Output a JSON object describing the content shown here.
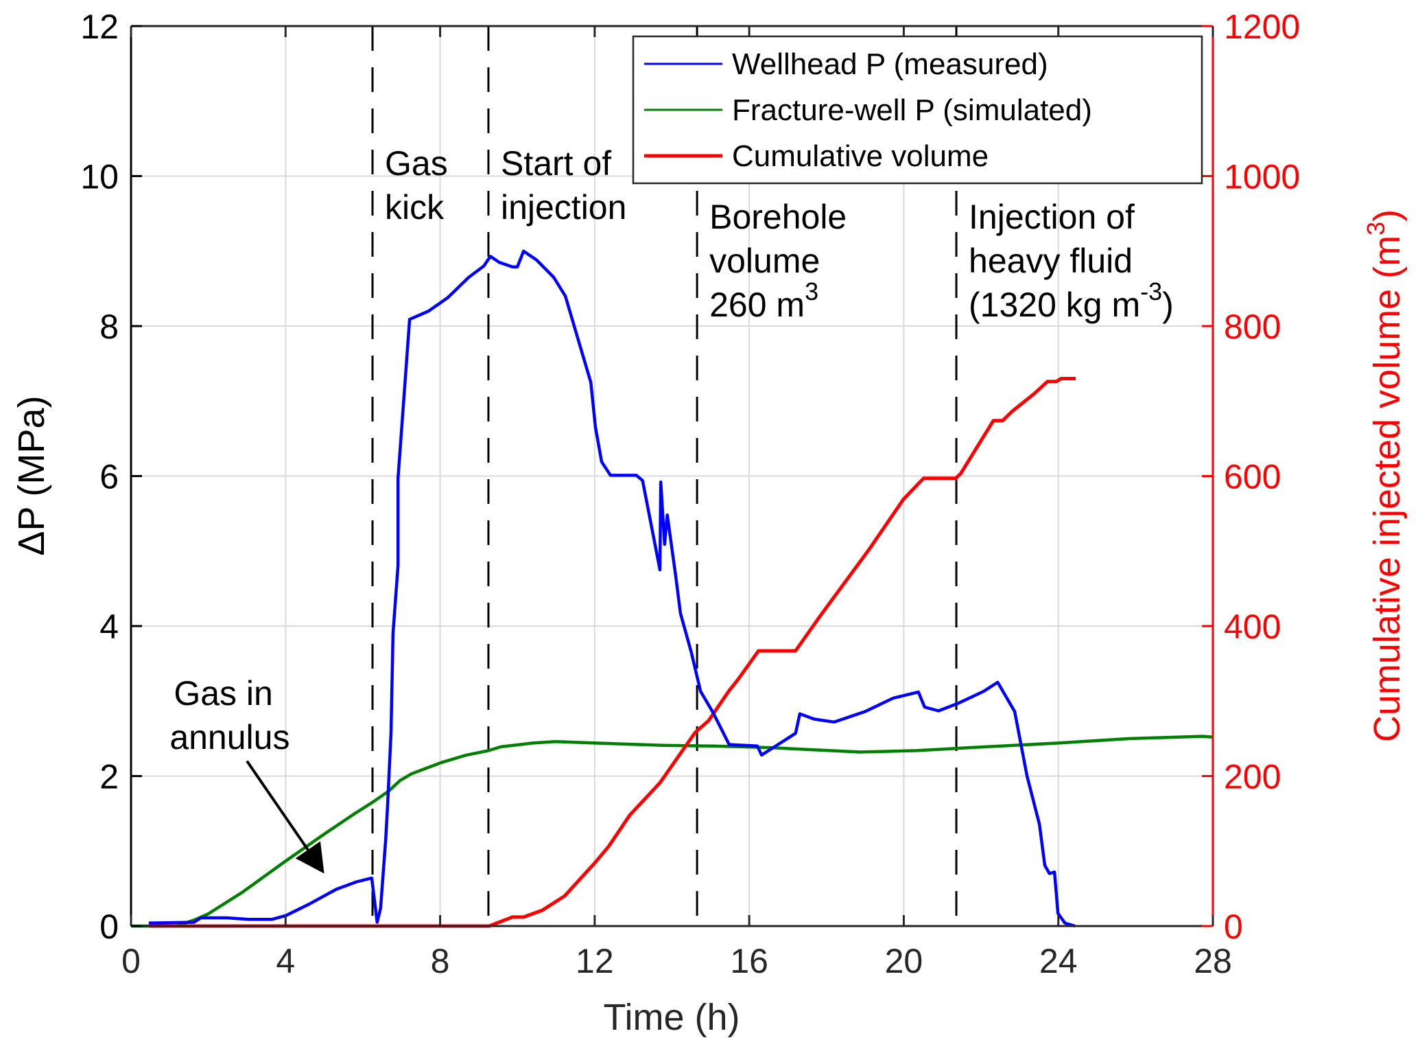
{
  "chart_data": {
    "type": "line",
    "title": "",
    "xlabel": "Time (h)",
    "ylabel": "ΔP (MPa)",
    "ylabel_right": "Cumulative injected volume (m",
    "ylabel_right_sup": "3",
    "ylabel_right_close": ")",
    "xlim": [
      0,
      28
    ],
    "ylim": [
      0,
      12
    ],
    "ylim_right": [
      0,
      1200
    ],
    "xticks": [
      "0",
      "4",
      "8",
      "12",
      "16",
      "20",
      "24",
      "28"
    ],
    "xtick_values": [
      0,
      4,
      8,
      12,
      16,
      20,
      24,
      28
    ],
    "yticks": [
      "0",
      "2",
      "4",
      "6",
      "8",
      "10",
      "12"
    ],
    "ytick_values": [
      0,
      2,
      4,
      6,
      8,
      10,
      12
    ],
    "yticks_right": [
      "0",
      "200",
      "400",
      "600",
      "800",
      "1000",
      "1200"
    ],
    "ytick_values_right": [
      0,
      200,
      400,
      600,
      800,
      1000,
      1200
    ],
    "grid": true,
    "legend_position": "top-right",
    "colors": {
      "wellhead": "#0000ff",
      "fracture": "#007f00",
      "volume": "#ff0000",
      "right_axis": "#ff0000"
    },
    "series": [
      {
        "name": "Wellhead P (measured)",
        "axis": "left",
        "color": "#0000ff",
        "x": [
          0.46,
          1.63,
          1.81,
          2.47,
          3.05,
          3.65,
          4.01,
          4.6,
          5.31,
          5.84,
          6.23,
          6.37,
          6.46,
          6.59,
          6.64,
          6.73,
          6.78,
          6.91,
          6.91,
          7.21,
          7.7,
          8.2,
          8.74,
          9.13,
          9.3,
          9.53,
          9.87,
          10.0,
          10.16,
          10.5,
          10.94,
          11.24,
          11.9,
          12.02,
          12.18,
          12.41,
          13.08,
          13.24,
          13.69,
          13.71,
          13.81,
          13.88,
          14.1,
          14.22,
          14.5,
          14.74,
          15.07,
          15.48,
          16.21,
          16.32,
          17.2,
          17.31,
          17.68,
          18.2,
          19.0,
          19.73,
          20.38,
          20.54,
          20.9,
          21.41,
          22.07,
          22.43,
          22.87,
          23.19,
          23.51,
          23.65,
          23.77,
          23.9,
          23.99,
          24.17,
          24.43
        ],
        "values": [
          0.04,
          0.05,
          0.11,
          0.11,
          0.09,
          0.09,
          0.14,
          0.29,
          0.49,
          0.59,
          0.64,
          0.05,
          0.24,
          1.15,
          1.61,
          2.58,
          3.9,
          4.81,
          5.97,
          8.09,
          8.2,
          8.38,
          8.65,
          8.8,
          8.93,
          8.85,
          8.79,
          8.79,
          9.0,
          8.88,
          8.65,
          8.4,
          7.25,
          6.65,
          6.19,
          6.01,
          6.01,
          5.94,
          4.75,
          5.92,
          5.09,
          5.48,
          4.66,
          4.17,
          3.65,
          3.13,
          2.84,
          2.42,
          2.4,
          2.28,
          2.57,
          2.83,
          2.76,
          2.72,
          2.86,
          3.04,
          3.12,
          2.92,
          2.87,
          2.97,
          3.13,
          3.25,
          2.86,
          2.0,
          1.36,
          0.81,
          0.7,
          0.72,
          0.17,
          0.04,
          0.0
        ]
      },
      {
        "name": "Fracture-well P (simulated)",
        "axis": "left",
        "color": "#007f00",
        "x": [
          0,
          1.17,
          1.63,
          1.99,
          2.88,
          4.01,
          5.01,
          5.79,
          6.25,
          6.67,
          6.96,
          7.26,
          8.03,
          8.68,
          9.25,
          9.57,
          10.4,
          10.99,
          12.0,
          13.78,
          15.07,
          16.5,
          18.87,
          20.33,
          21.73,
          23.24,
          24.0,
          25.85,
          27.73,
          28.0
        ],
        "values": [
          0,
          0,
          0.08,
          0.16,
          0.45,
          0.87,
          1.23,
          1.5,
          1.65,
          1.8,
          1.94,
          2.03,
          2.18,
          2.28,
          2.34,
          2.39,
          2.44,
          2.46,
          2.44,
          2.41,
          2.4,
          2.38,
          2.32,
          2.34,
          2.38,
          2.42,
          2.44,
          2.5,
          2.53,
          2.52
        ]
      },
      {
        "name": "Cumulative volume",
        "axis": "right",
        "color": "#ff0000",
        "x": [
          0.46,
          9.27,
          9.87,
          10.16,
          10.64,
          11.22,
          12.0,
          12.36,
          12.91,
          13.69,
          14.6,
          14.95,
          15.48,
          15.7,
          16.24,
          17.2,
          17.83,
          19.1,
          19.99,
          20.51,
          21.34,
          21.47,
          22.32,
          22.56,
          22.8,
          23.38,
          23.72,
          23.95,
          24.07,
          24.45
        ],
        "values": [
          0,
          0,
          12,
          12,
          21,
          40,
          84,
          106,
          148,
          191,
          258,
          274,
          314,
          328,
          367,
          367,
          413,
          502,
          569,
          597,
          597,
          603,
          674,
          674,
          686,
          710,
          726,
          726,
          730,
          730
        ]
      }
    ],
    "event_lines": [
      {
        "x": 6.25,
        "label_lines": [
          "Gas",
          "kick"
        ]
      },
      {
        "x": 9.25,
        "label_lines": [
          "Start of",
          "injection"
        ]
      },
      {
        "x": 14.65,
        "label_lines": [
          "Borehole",
          "volume",
          "260 m"
        ],
        "sup": "3"
      },
      {
        "x": 21.36,
        "label_lines": [
          "Injection of",
          "heavy fluid",
          "(1320 kg m"
        ],
        "sup": "-3",
        "suffix": ")"
      }
    ],
    "arrow_annotation": {
      "label_lines": [
        "Gas in",
        "annulus"
      ],
      "from": [
        3.0,
        2.2
      ],
      "to": [
        5.0,
        0.7
      ]
    }
  }
}
